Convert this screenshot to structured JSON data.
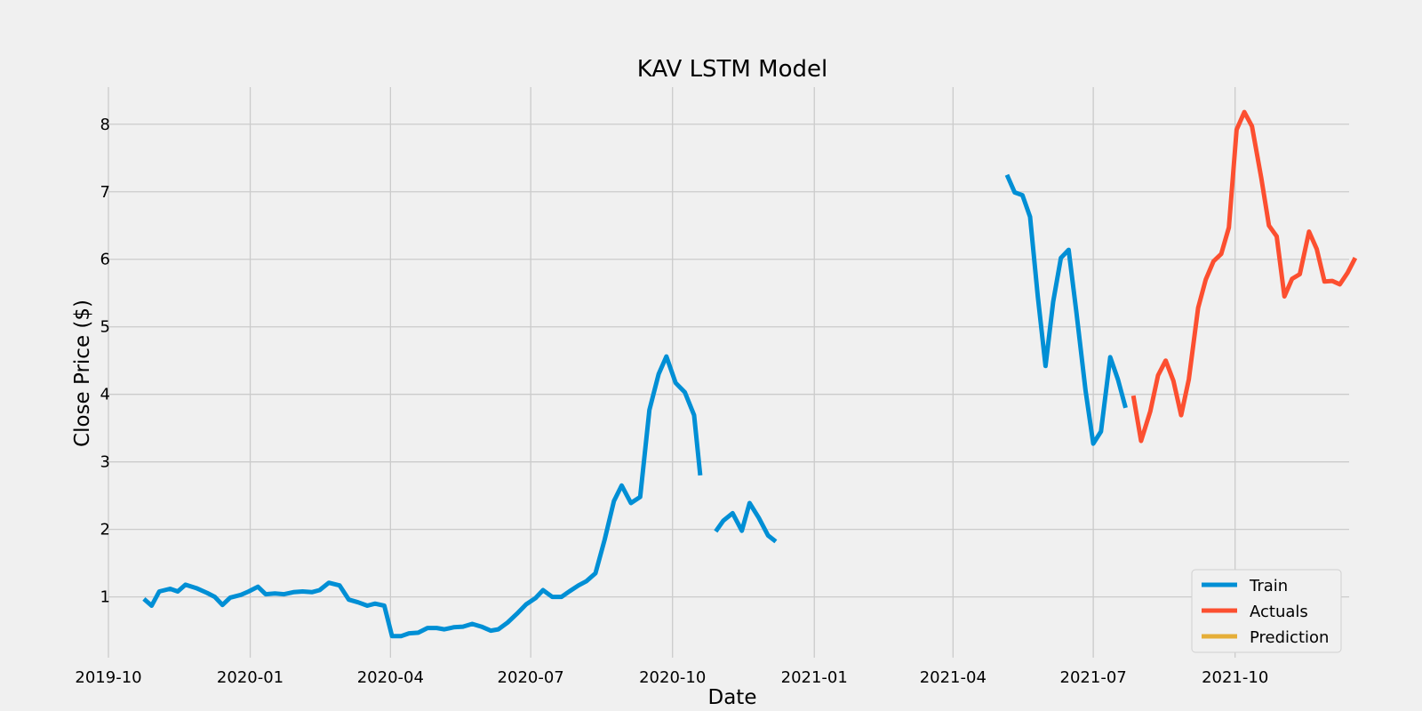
{
  "chart_data": {
    "type": "line",
    "title": "KAV LSTM Model",
    "xlabel": "Date",
    "ylabel": "Close Price ($)",
    "xlim": [
      "2019-10-01",
      "2021-12-14"
    ],
    "ylim": [
      0.1,
      8.55
    ],
    "grid": true,
    "legend_position": "bottom-right",
    "x_ticks": [
      "2019-10-01",
      "2020-01-01",
      "2020-04-01",
      "2020-07-01",
      "2020-10-01",
      "2021-01-01",
      "2021-04-01",
      "2021-07-01",
      "2021-10-01"
    ],
    "x_tick_labels": [
      "2019-10",
      "2020-01",
      "2020-04",
      "2020-07",
      "2020-10",
      "2021-01",
      "2021-04",
      "2021-07",
      "2021-10"
    ],
    "y_ticks": [
      1,
      2,
      3,
      4,
      5,
      6,
      7,
      8
    ],
    "y_tick_labels": [
      "1",
      "2",
      "3",
      "4",
      "5",
      "6",
      "7",
      "8"
    ],
    "series": [
      {
        "name": "Train",
        "color": "#008fd5",
        "segments": [
          [
            [
              "2019-10-24",
              0.97
            ],
            [
              "2019-10-29",
              0.87
            ],
            [
              "2019-11-03",
              1.08
            ],
            [
              "2019-11-10",
              1.12
            ],
            [
              "2019-11-15",
              1.08
            ],
            [
              "2019-11-20",
              1.18
            ],
            [
              "2019-11-27",
              1.13
            ],
            [
              "2019-12-04",
              1.06
            ],
            [
              "2019-12-09",
              1.0
            ],
            [
              "2019-12-14",
              0.88
            ],
            [
              "2019-12-19",
              0.99
            ],
            [
              "2019-12-26",
              1.03
            ],
            [
              "2019-12-31",
              1.08
            ],
            [
              "2020-01-06",
              1.15
            ],
            [
              "2020-01-11",
              1.04
            ],
            [
              "2020-01-17",
              1.05
            ],
            [
              "2020-01-23",
              1.04
            ],
            [
              "2020-01-29",
              1.07
            ],
            [
              "2020-02-04",
              1.08
            ],
            [
              "2020-02-10",
              1.07
            ],
            [
              "2020-02-15",
              1.1
            ],
            [
              "2020-02-21",
              1.21
            ],
            [
              "2020-02-28",
              1.17
            ],
            [
              "2020-03-05",
              0.96
            ],
            [
              "2020-03-11",
              0.92
            ],
            [
              "2020-03-17",
              0.87
            ],
            [
              "2020-03-22",
              0.9
            ],
            [
              "2020-03-28",
              0.87
            ],
            [
              "2020-04-02",
              0.42
            ],
            [
              "2020-04-08",
              0.42
            ],
            [
              "2020-04-13",
              0.46
            ],
            [
              "2020-04-19",
              0.47
            ],
            [
              "2020-04-25",
              0.54
            ],
            [
              "2020-05-01",
              0.54
            ],
            [
              "2020-05-06",
              0.52
            ],
            [
              "2020-05-12",
              0.55
            ],
            [
              "2020-05-18",
              0.56
            ],
            [
              "2020-05-24",
              0.6
            ],
            [
              "2020-05-30",
              0.56
            ],
            [
              "2020-06-05",
              0.5
            ],
            [
              "2020-06-10",
              0.52
            ],
            [
              "2020-06-16",
              0.62
            ],
            [
              "2020-06-22",
              0.75
            ],
            [
              "2020-06-28",
              0.89
            ],
            [
              "2020-07-04",
              0.98
            ],
            [
              "2020-07-09",
              1.1
            ],
            [
              "2020-07-15",
              1.0
            ],
            [
              "2020-07-21",
              1.0
            ],
            [
              "2020-07-26",
              1.08
            ],
            [
              "2020-08-01",
              1.17
            ],
            [
              "2020-08-06",
              1.23
            ],
            [
              "2020-08-12",
              1.35
            ],
            [
              "2020-08-18",
              1.85
            ],
            [
              "2020-08-24",
              2.42
            ],
            [
              "2020-08-29",
              2.65
            ],
            [
              "2020-09-04",
              2.39
            ],
            [
              "2020-09-10",
              2.48
            ],
            [
              "2020-09-16",
              3.77
            ],
            [
              "2020-09-22",
              4.3
            ],
            [
              "2020-09-27",
              4.56
            ],
            [
              "2020-10-03",
              4.17
            ],
            [
              "2020-10-09",
              4.03
            ],
            [
              "2020-10-15",
              3.69
            ],
            [
              "2020-10-19",
              2.8
            ]
          ],
          [
            [
              "2020-10-29",
              1.97
            ],
            [
              "2020-11-03",
              2.13
            ],
            [
              "2020-11-09",
              2.24
            ],
            [
              "2020-11-15",
              1.98
            ],
            [
              "2020-11-20",
              2.39
            ],
            [
              "2020-11-26",
              2.17
            ],
            [
              "2020-12-02",
              1.91
            ],
            [
              "2020-12-07",
              1.82
            ]
          ],
          [
            [
              "2021-05-06",
              7.25
            ],
            [
              "2021-05-11",
              6.99
            ],
            [
              "2021-05-16",
              6.95
            ],
            [
              "2021-05-21",
              6.63
            ],
            [
              "2021-05-26",
              5.45
            ],
            [
              "2021-05-31",
              4.42
            ],
            [
              "2021-06-05",
              5.37
            ],
            [
              "2021-06-10",
              6.02
            ],
            [
              "2021-06-15",
              6.14
            ],
            [
              "2021-06-20",
              5.22
            ],
            [
              "2021-06-26",
              4.05
            ],
            [
              "2021-07-01",
              3.27
            ],
            [
              "2021-07-06",
              3.45
            ],
            [
              "2021-07-12",
              4.55
            ],
            [
              "2021-07-17",
              4.22
            ],
            [
              "2021-07-22",
              3.8
            ]
          ]
        ]
      },
      {
        "name": "Actuals",
        "color": "#fc4f30",
        "segments": [
          [
            [
              "2021-07-27",
              3.98
            ],
            [
              "2021-08-01",
              3.31
            ],
            [
              "2021-08-07",
              3.75
            ],
            [
              "2021-08-12",
              4.28
            ],
            [
              "2021-08-17",
              4.5
            ],
            [
              "2021-08-22",
              4.2
            ],
            [
              "2021-08-27",
              3.69
            ],
            [
              "2021-09-01",
              4.22
            ],
            [
              "2021-09-07",
              5.28
            ],
            [
              "2021-09-12",
              5.7
            ],
            [
              "2021-09-17",
              5.97
            ],
            [
              "2021-09-22",
              6.08
            ],
            [
              "2021-09-27",
              6.47
            ],
            [
              "2021-10-02",
              7.92
            ],
            [
              "2021-10-07",
              8.18
            ],
            [
              "2021-10-12",
              7.97
            ],
            [
              "2021-10-18",
              7.2
            ],
            [
              "2021-10-23",
              6.5
            ],
            [
              "2021-10-28",
              6.34
            ],
            [
              "2021-11-02",
              5.45
            ],
            [
              "2021-11-07",
              5.71
            ],
            [
              "2021-11-12",
              5.78
            ],
            [
              "2021-11-18",
              6.41
            ],
            [
              "2021-11-23",
              6.15
            ],
            [
              "2021-11-28",
              5.67
            ],
            [
              "2021-12-03",
              5.68
            ],
            [
              "2021-12-08",
              5.63
            ],
            [
              "2021-12-13",
              5.8
            ],
            [
              "2021-12-18",
              6.02
            ]
          ]
        ]
      },
      {
        "name": "Prediction",
        "color": "#e5ae38",
        "segments": []
      }
    ]
  }
}
